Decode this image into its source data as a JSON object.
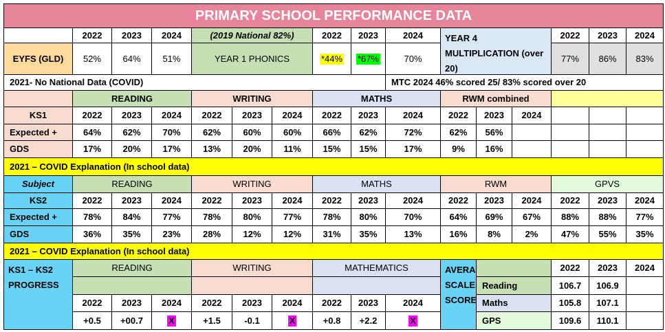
{
  "title": "PRIMARY SCHOOL PERFORMANCE DATA",
  "years": [
    "2022",
    "2023",
    "2024"
  ],
  "eyfs": {
    "label": "EYFS (GLD)",
    "values": [
      "52%",
      "64%",
      "51%"
    ]
  },
  "phonics": {
    "national_note": "(2019 National 82%)",
    "label": "YEAR 1 PHONICS",
    "values": [
      "*44%",
      "*67%",
      "70%"
    ]
  },
  "multiplication": {
    "label": "YEAR 4 MULTIPLICATION (over 20)",
    "values": [
      "77%",
      "86%",
      "83%"
    ]
  },
  "notes": {
    "covid_2021": "2021- No National Data (COVID)",
    "mtc_2024": "MTC 2024 46% scored 25/ 83% scored over 20"
  },
  "ks1": {
    "label": "KS1",
    "subjects": [
      "READING",
      "WRITING",
      "MATHS",
      "RWM combined"
    ],
    "rows": [
      {
        "label": "Expected +",
        "values": [
          "64%",
          "62%",
          "70%",
          "62%",
          "60%",
          "60%",
          "66%",
          "62%",
          "72%",
          "62%",
          "56%",
          ""
        ]
      },
      {
        "label": "GDS",
        "values": [
          "17%",
          "20%",
          "17%",
          "13%",
          "20%",
          "11%",
          "15%",
          "15%",
          "17%",
          "9%",
          "16%",
          ""
        ]
      }
    ]
  },
  "covid_explanation": "2021 – COVID Explanation (In school data)",
  "ks2": {
    "subject_label": "Subject",
    "label": "KS2",
    "subjects": [
      "READING",
      "WRITING",
      "MATHS",
      "RWM",
      "GPVS"
    ],
    "rows": [
      {
        "label": "Expected +",
        "values": [
          "78%",
          "84%",
          "77%",
          "78%",
          "80%",
          "77%",
          "78%",
          "80%",
          "70%",
          "64%",
          "69%",
          "67%",
          "88%",
          "88%",
          "77%"
        ]
      },
      {
        "label": "GDS",
        "values": [
          "36%",
          "35%",
          "23%",
          "28%",
          "12%",
          "12%",
          "31%",
          "35%",
          "13%",
          "16%",
          "8%",
          "2%",
          "47%",
          "55%",
          "35%"
        ]
      }
    ]
  },
  "progress": {
    "label": "KS1 – KS2 PROGRESS",
    "subjects": [
      "READING",
      "WRITING",
      "MATHEMATICS"
    ],
    "values": [
      "+0.5",
      "+00.7",
      "X",
      "+1.5",
      "-0.1",
      "X",
      "+0.8",
      "+2.2",
      "X"
    ]
  },
  "scale_scores": {
    "label": "AVERAGE SCALE SCORES",
    "rows": [
      {
        "label": "Reading",
        "values": [
          "106.7",
          "106.9",
          ""
        ]
      },
      {
        "label": "Maths",
        "values": [
          "105.8",
          "107.1",
          ""
        ]
      },
      {
        "label": "GPS",
        "values": [
          "109.6",
          "110.1",
          ""
        ]
      }
    ]
  },
  "colors": {
    "title_bg": "#e8849a",
    "eyfs": "#fdd99b",
    "phonics": "#c6e0b4",
    "multiplication": "#dae7f5",
    "reading": "#c6e0b4",
    "writing": "#f8dccf",
    "maths": "#d9e1f2",
    "rwm": "#f8dccf",
    "gpvs": "#e2f9dc",
    "ks1_label": "#f8dccf",
    "ks2_label": "#69d3f5",
    "covid_bar": "#ffff00",
    "pale_yellow": "#ffff99",
    "grey": "#e0e0e0",
    "highlight_yellow": "#ffff00",
    "highlight_green": "#00ff00",
    "highlight_magenta": "#ff00ff"
  }
}
